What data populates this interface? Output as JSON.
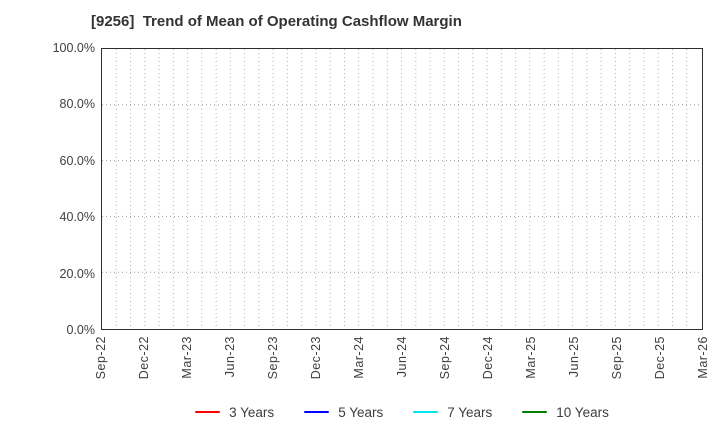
{
  "title": "[9256]  Trend of Mean of Operating Cashflow Margin",
  "chart_data": {
    "type": "line",
    "title": "[9256]  Trend of Mean of Operating Cashflow Margin",
    "xlabel": "",
    "ylabel": "",
    "ylim": [
      0,
      100
    ],
    "y_tick_format": "percent",
    "grid": true,
    "legend_position": "bottom",
    "x_ticks": [
      "Sep-22",
      "Dec-22",
      "Mar-23",
      "Jun-23",
      "Sep-23",
      "Dec-23",
      "Mar-24",
      "Jun-24",
      "Sep-24",
      "Dec-24",
      "Mar-25",
      "Jun-25",
      "Sep-25",
      "Dec-25",
      "Mar-26"
    ],
    "x_minor_gridlines": 42,
    "y_ticks": [
      {
        "label": "100.0%",
        "value": 100
      },
      {
        "label": "80.0%",
        "value": 80
      },
      {
        "label": "60.0%",
        "value": 60
      },
      {
        "label": "40.0%",
        "value": 40
      },
      {
        "label": "20.0%",
        "value": 20
      },
      {
        "label": "0.0%",
        "value": 0
      }
    ],
    "series": [
      {
        "name": "3 Years",
        "color": "#ff0000",
        "values": []
      },
      {
        "name": "5 Years",
        "color": "#0000ff",
        "values": []
      },
      {
        "name": "7 Years",
        "color": "#00e5ee",
        "values": []
      },
      {
        "name": "10 Years",
        "color": "#008000",
        "values": []
      }
    ]
  }
}
